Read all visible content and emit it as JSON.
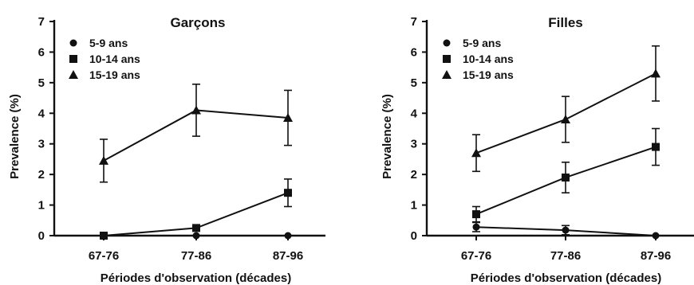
{
  "chart_data": [
    {
      "type": "line",
      "title": "Garçons",
      "xlabel": "Périodes d'observation (décades)",
      "ylabel": "Prevalence  (%)",
      "categories": [
        "67-76",
        "77-86",
        "87-96"
      ],
      "ylim": [
        0,
        7
      ],
      "yticks": [
        "0",
        "1",
        "2",
        "3",
        "4",
        "5",
        "6",
        "7"
      ],
      "grid": false,
      "legend_position": "top-left",
      "series": [
        {
          "name": "5-9 ans",
          "marker": "circle",
          "values": [
            0,
            0,
            0
          ],
          "err": [
            0,
            0,
            0
          ]
        },
        {
          "name": "10-14 ans",
          "marker": "square",
          "values": [
            0,
            0.25,
            1.4
          ],
          "err": [
            0,
            0.1,
            0.45
          ]
        },
        {
          "name": "15-19 ans",
          "marker": "triangle",
          "values": [
            2.45,
            4.1,
            3.85
          ],
          "err": [
            0.7,
            0.85,
            0.9
          ]
        }
      ]
    },
    {
      "type": "line",
      "title": "Filles",
      "xlabel": "Périodes d'observation (décades)",
      "ylabel": "Prevalence  (%)",
      "categories": [
        "67-76",
        "77-86",
        "87-96"
      ],
      "ylim": [
        0,
        7
      ],
      "yticks": [
        "0",
        "1",
        "2",
        "3",
        "4",
        "5",
        "6",
        "7"
      ],
      "grid": false,
      "legend_position": "top-left",
      "series": [
        {
          "name": "5-9 ans",
          "marker": "circle",
          "values": [
            0.28,
            0.18,
            0
          ],
          "err": [
            0.15,
            0.15,
            0
          ]
        },
        {
          "name": "10-14 ans",
          "marker": "square",
          "values": [
            0.7,
            1.9,
            2.9
          ],
          "err": [
            0.25,
            0.5,
            0.6
          ]
        },
        {
          "name": "15-19 ans",
          "marker": "triangle",
          "values": [
            2.7,
            3.8,
            5.3
          ],
          "err": [
            0.6,
            0.75,
            0.9
          ]
        }
      ]
    }
  ]
}
